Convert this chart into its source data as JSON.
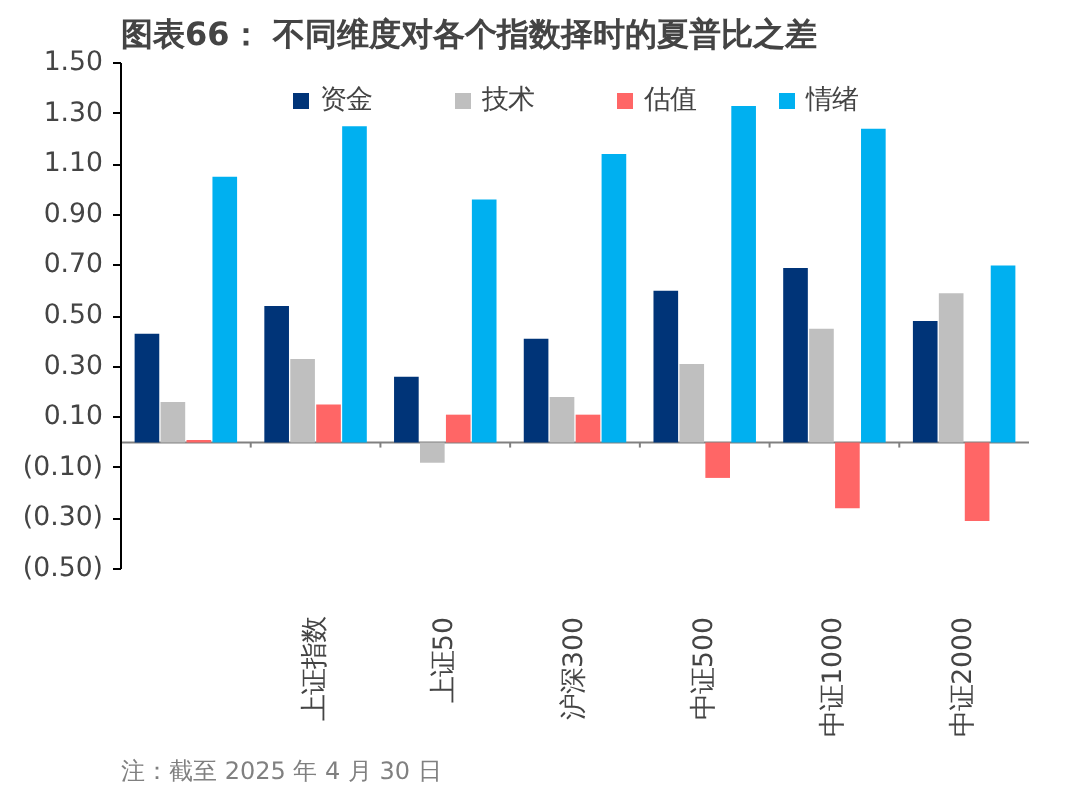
{
  "chart_data": {
    "type": "bar",
    "title": "图表66：  不同维度对各个指数择时的夏普比之差",
    "categories": [
      null,
      "上证指数",
      "上证50",
      "沪深300",
      "中证500",
      "中证1000",
      "中证2000"
    ],
    "series": [
      {
        "name": "资金",
        "color": "#003478",
        "values": [
          0.43,
          0.54,
          0.26,
          0.41,
          0.6,
          0.69,
          0.48
        ]
      },
      {
        "name": "技术",
        "color": "#bfbfbf",
        "values": [
          0.16,
          0.33,
          -0.08,
          0.18,
          0.31,
          0.45,
          0.59
        ]
      },
      {
        "name": "估值",
        "color": "#ff6666",
        "values": [
          0.01,
          0.15,
          0.11,
          0.11,
          -0.14,
          -0.26,
          -0.31
        ]
      },
      {
        "name": "情绪",
        "color": "#00b0f0",
        "values": [
          1.05,
          1.25,
          0.96,
          1.14,
          1.33,
          1.24,
          0.7
        ]
      }
    ],
    "ylim": [
      -0.5,
      1.5
    ],
    "yticks": [
      {
        "value": -0.5,
        "label": "(0.50)"
      },
      {
        "value": -0.3,
        "label": "(0.30)"
      },
      {
        "value": -0.1,
        "label": "(0.10)"
      },
      {
        "value": 0.1,
        "label": "0.10"
      },
      {
        "value": 0.3,
        "label": "0.30"
      },
      {
        "value": 0.5,
        "label": "0.50"
      },
      {
        "value": 0.7,
        "label": "0.70"
      },
      {
        "value": 0.9,
        "label": "0.90"
      },
      {
        "value": 1.1,
        "label": "1.10"
      },
      {
        "value": 1.3,
        "label": "1.30"
      },
      {
        "value": 1.5,
        "label": "1.50"
      }
    ],
    "grid": false,
    "legend": "top",
    "annotations": [
      "注：截至 2025 年 4 月 30 日"
    ]
  }
}
